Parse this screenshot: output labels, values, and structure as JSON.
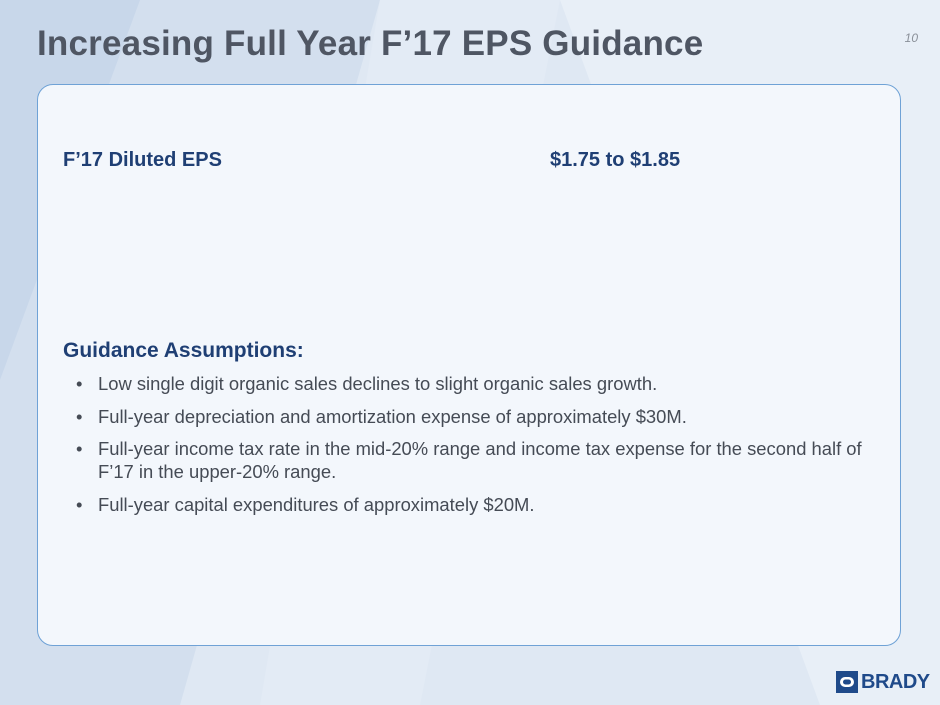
{
  "slide": {
    "title": "Increasing Full Year F’17 EPS Guidance",
    "page_number": "10"
  },
  "eps": {
    "label": "F’17 Diluted EPS",
    "value": "$1.75 to $1.85"
  },
  "assumptions": {
    "heading": "Guidance Assumptions:",
    "bullet_glyph": "•",
    "items": [
      "Low single digit organic sales declines to slight organic sales growth.",
      "Full-year depreciation and amortization expense of approximately $30M.",
      "Full-year income tax rate in the mid-20% range and income tax expense for the second half of F’17 in the upper-20% range.",
      "Full-year capital expenditures of approximately $20M."
    ]
  },
  "logo": {
    "text": "BRADY",
    "icon": "brady-logo-icon"
  },
  "colors": {
    "title": "#4f5663",
    "heading": "#1f3f74",
    "body_text": "#454b55",
    "panel_border": "#6fa2d6",
    "panel_fill": "#f3f7fc",
    "logo": "#1f4a8a"
  }
}
